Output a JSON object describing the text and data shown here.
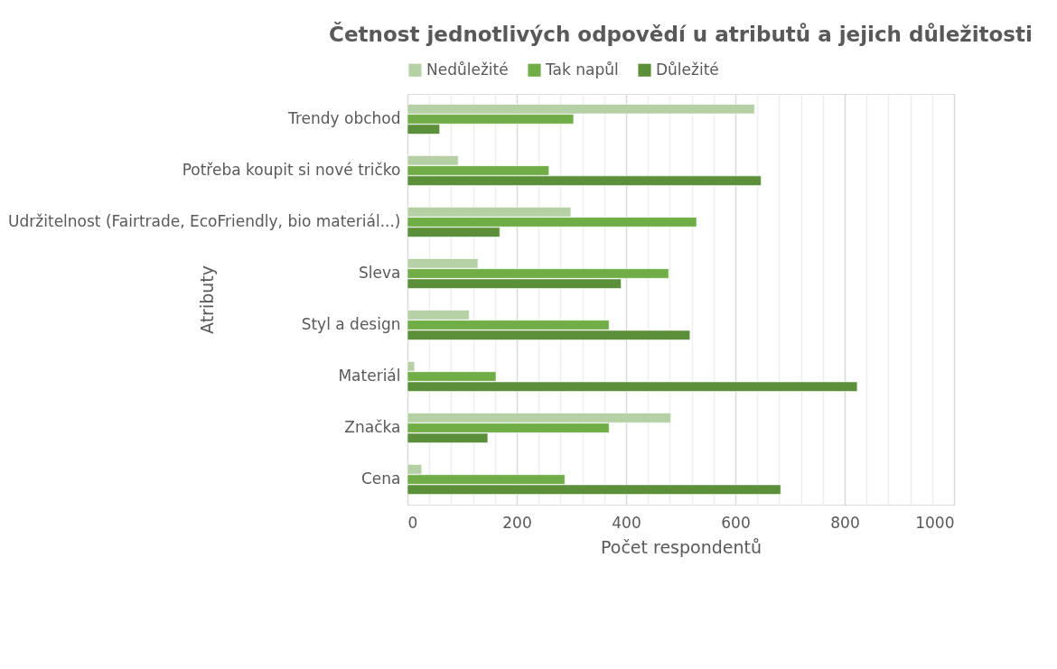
{
  "chart_data": {
    "type": "bar",
    "orientation": "horizontal",
    "title": "Četnost jednotlivých odpovědí u atributů a jejich důležitosti",
    "xlabel": "Počet respondentů",
    "ylabel": "Atributy",
    "categories": [
      "Trendy obchod",
      "Potřeba koupit si nové tričko",
      "Udržitelnost (Fairtrade, EcoFriendly, bio materiál...)",
      "Sleva",
      "Styl a design",
      "Materiál",
      "Značka",
      "Cena"
    ],
    "series": [
      {
        "name": "Nedůležité",
        "color": "#b5d0a5",
        "values": [
          635,
          93,
          299,
          129,
          113,
          13,
          482,
          26
        ]
      },
      {
        "name": "Tak napůl",
        "color": "#70ad47",
        "values": [
          304,
          259,
          529,
          478,
          369,
          162,
          369,
          288
        ]
      },
      {
        "name": "Důležité",
        "color": "#5b8f3a",
        "values": [
          59,
          647,
          169,
          391,
          517,
          823,
          147,
          683
        ]
      }
    ],
    "xlim": [
      0,
      1000
    ],
    "xticks": [
      0,
      {
        "value": 40,
        "label": null
      },
      {
        "value": 80,
        "label": null
      },
      {
        "value": 120,
        "label": null
      },
      {
        "value": 160,
        "label": null
      },
      200,
      {
        "value": 240,
        "label": null
      },
      {
        "value": 280,
        "label": null
      },
      {
        "value": 320,
        "label": null
      },
      {
        "value": 360,
        "label": null
      },
      400,
      {
        "value": 440,
        "label": null
      },
      {
        "value": 480,
        "label": null
      },
      {
        "value": 520,
        "label": null
      },
      {
        "value": 560,
        "label": null
      },
      600,
      {
        "value": 640,
        "label": null
      },
      {
        "value": 680,
        "label": null
      },
      {
        "value": 720,
        "label": null
      },
      {
        "value": 760,
        "label": null
      },
      800,
      {
        "value": 840,
        "label": null
      },
      {
        "value": 880,
        "label": null
      },
      {
        "value": 920,
        "label": null
      },
      {
        "value": 960,
        "label": null
      },
      1000
    ],
    "grid": true,
    "legend": "top"
  }
}
